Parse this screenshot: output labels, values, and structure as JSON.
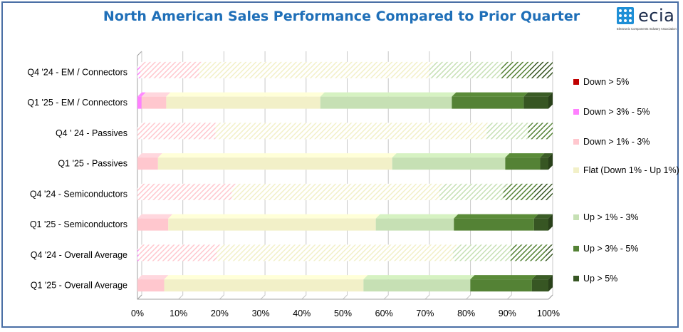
{
  "logo": {
    "text": "ecia",
    "subtitle": "Electronic Components Industry Association",
    "icon": "ecia-grid-icon"
  },
  "chart_data": {
    "type": "bar",
    "stacked": true,
    "orientation": "horizontal",
    "title": "North American Sales Performance Compared to Prior Quarter",
    "xlim": [
      0,
      100
    ],
    "x_ticks": [
      "0%",
      "10%",
      "20%",
      "30%",
      "40%",
      "50%",
      "60%",
      "70%",
      "80%",
      "90%",
      "100%"
    ],
    "categories": [
      "Q4 '24 - EM / Connectors",
      "Q1 '25 - EM / Connectors",
      "Q4 ' 24 - Passives",
      "Q1 '25 - Passives",
      "Q4 '24 - Semiconductors",
      "Q1 '25 - Semiconductors",
      "Q4 '24 - Overall Average",
      "Q1 '25 - Overall Average"
    ],
    "hatched_categories": [
      0,
      2,
      4,
      6
    ],
    "series": [
      {
        "name": "Down > 5%",
        "color": "#c00000",
        "values": [
          0,
          0,
          0,
          0,
          0,
          0,
          0,
          0
        ]
      },
      {
        "name": "Down > 3% - 5%",
        "color": "#ff80ff",
        "values": [
          0.7,
          1.0,
          0,
          0,
          0,
          0,
          0.3,
          0
        ]
      },
      {
        "name": "Down > 1% - 3%",
        "color": "#ffc7ce",
        "values": [
          14.3,
          6.0,
          19.0,
          5.0,
          23.0,
          7.5,
          19.0,
          6.5
        ]
      },
      {
        "name": "Flat (Down 1% - Up 1%)",
        "color": "#f2f0c8",
        "values": [
          56.0,
          37.5,
          66.0,
          57.0,
          50.5,
          50.5,
          57.5,
          48.5
        ]
      },
      {
        "name": "Up > 1% - 3%",
        "color": "#c6e0b4",
        "values": [
          17.5,
          32.0,
          10.0,
          27.5,
          15.5,
          19.0,
          14.0,
          26.0
        ]
      },
      {
        "name": "Up > 3% - 5%",
        "color": "#548235",
        "values": [
          7.0,
          17.5,
          5.0,
          8.5,
          7.5,
          19.5,
          8.5,
          15.0
        ]
      },
      {
        "name": "Up > 5%",
        "color": "#375623",
        "values": [
          4.5,
          6.0,
          0,
          2.0,
          3.5,
          3.5,
          0.7,
          4.0
        ]
      }
    ],
    "legend_position": "right",
    "grid": true
  }
}
